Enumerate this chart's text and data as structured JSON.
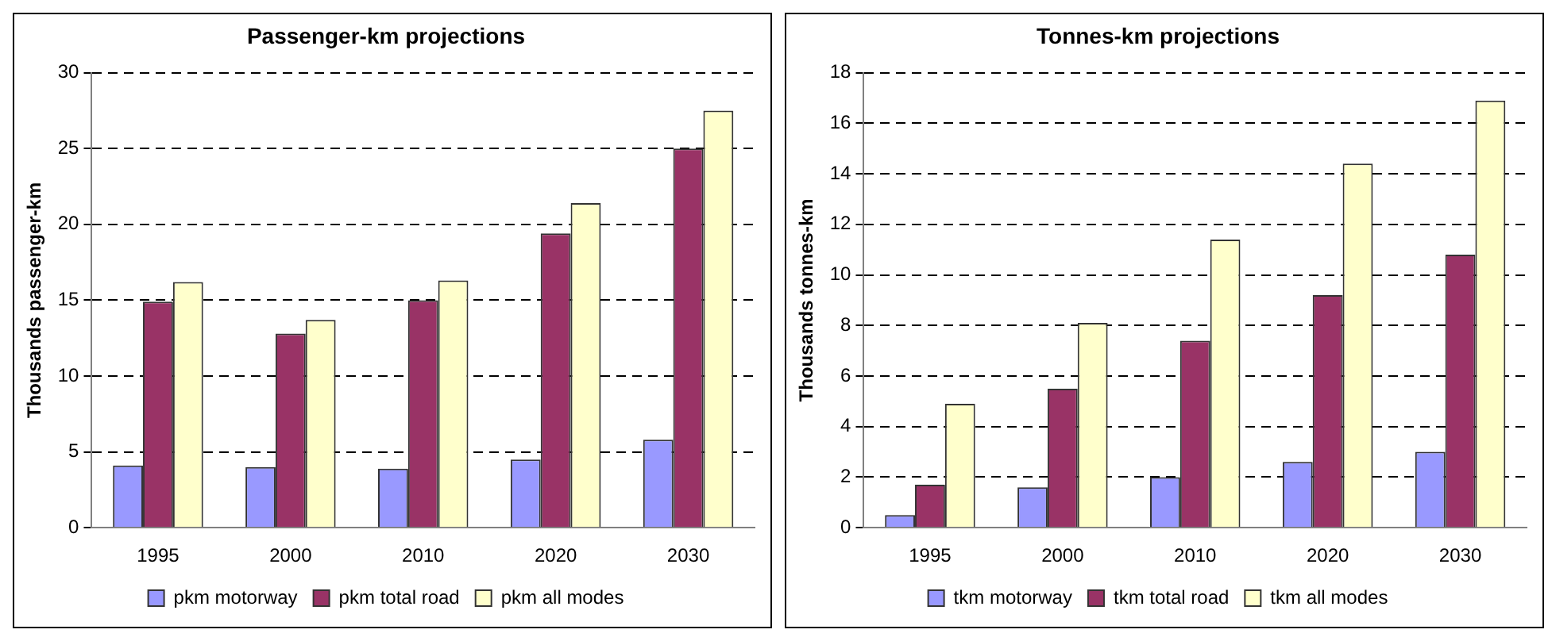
{
  "chart_data": [
    {
      "type": "bar",
      "title": "Passenger-km projections",
      "ylabel": "Thousands passenger-km",
      "categories": [
        "1995",
        "2000",
        "2010",
        "2020",
        "2030"
      ],
      "series": [
        {
          "name": "pkm motorway",
          "color": "#9999ff",
          "values": [
            4.1,
            4.0,
            3.9,
            4.5,
            5.8
          ]
        },
        {
          "name": "pkm total road",
          "color": "#993366",
          "values": [
            14.9,
            12.8,
            15.0,
            19.4,
            25.0
          ]
        },
        {
          "name": "pkm all modes",
          "color": "#ffffcc",
          "values": [
            16.2,
            13.7,
            16.3,
            21.4,
            27.5
          ]
        }
      ],
      "ylim": [
        0,
        30
      ],
      "yticks": [
        0,
        5,
        10,
        15,
        20,
        25,
        30
      ],
      "grid": "y",
      "legend": "bottom"
    },
    {
      "type": "bar",
      "title": "Tonnes-km projections",
      "ylabel": "Thousands tonnes-km",
      "categories": [
        "1995",
        "2000",
        "2010",
        "2020",
        "2030"
      ],
      "series": [
        {
          "name": "tkm motorway",
          "color": "#9999ff",
          "values": [
            0.5,
            1.6,
            2.0,
            2.6,
            3.0
          ]
        },
        {
          "name": "tkm total road",
          "color": "#993366",
          "values": [
            1.7,
            5.5,
            7.4,
            9.2,
            10.8
          ]
        },
        {
          "name": "tkm all modes",
          "color": "#ffffcc",
          "values": [
            4.9,
            8.1,
            11.4,
            14.4,
            16.9
          ]
        }
      ],
      "ylim": [
        0,
        18
      ],
      "yticks": [
        0,
        2,
        4,
        6,
        8,
        10,
        12,
        14,
        16,
        18
      ],
      "grid": "y",
      "legend": "bottom"
    }
  ]
}
